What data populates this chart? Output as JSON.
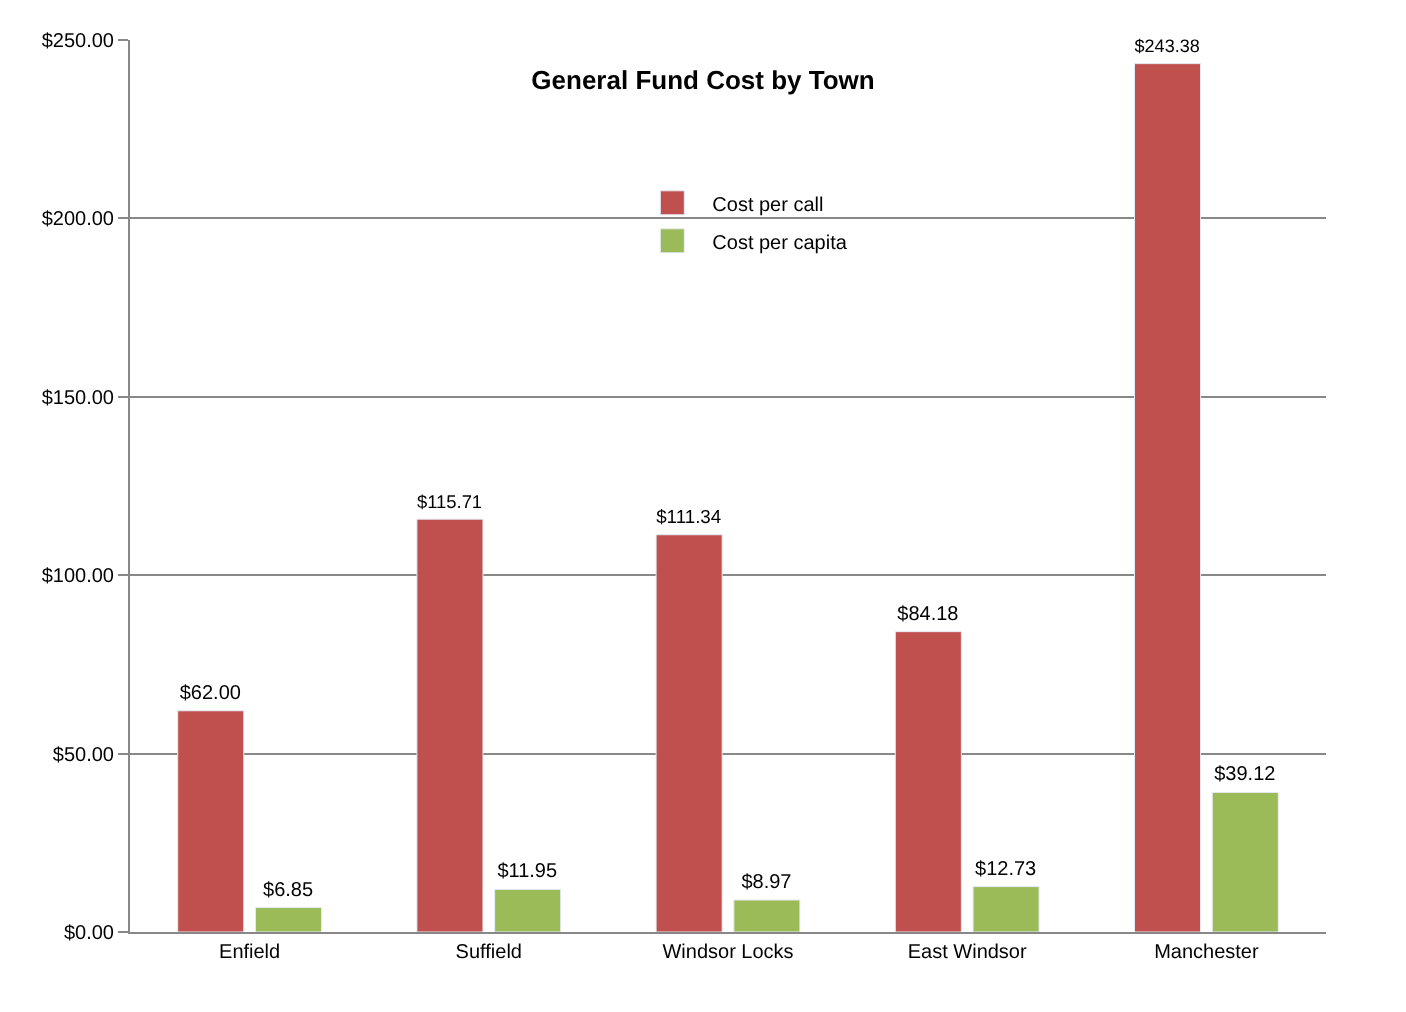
{
  "chart_data": {
    "type": "bar",
    "title": "General Fund Cost by Town",
    "categories": [
      "Enfield",
      "Suffield",
      "Windsor Locks",
      "East Windsor",
      "Manchester"
    ],
    "series": [
      {
        "name": "Cost per call",
        "color": "#c0504d",
        "values": [
          62.0,
          115.71,
          111.34,
          84.18,
          243.38
        ],
        "value_labels": [
          "$62.00",
          "$115.71",
          "$111.34",
          "$84.18",
          "$243.38"
        ]
      },
      {
        "name": "Cost per capita",
        "color": "#9bbb59",
        "values": [
          6.85,
          11.95,
          8.97,
          12.73,
          39.12
        ],
        "value_labels": [
          "$6.85",
          "$11.95",
          "$8.97",
          "$12.73",
          "$39.12"
        ]
      }
    ],
    "ylim": [
      0,
      250
    ],
    "yticks": [
      {
        "value": 0,
        "label": "$0.00"
      },
      {
        "value": 50,
        "label": "$50.00"
      },
      {
        "value": 100,
        "label": "$100.00"
      },
      {
        "value": 150,
        "label": "$150.00"
      },
      {
        "value": 200,
        "label": "$200.00"
      },
      {
        "value": 250,
        "label": "$250.00"
      }
    ],
    "grid": "y",
    "legend": "top"
  }
}
